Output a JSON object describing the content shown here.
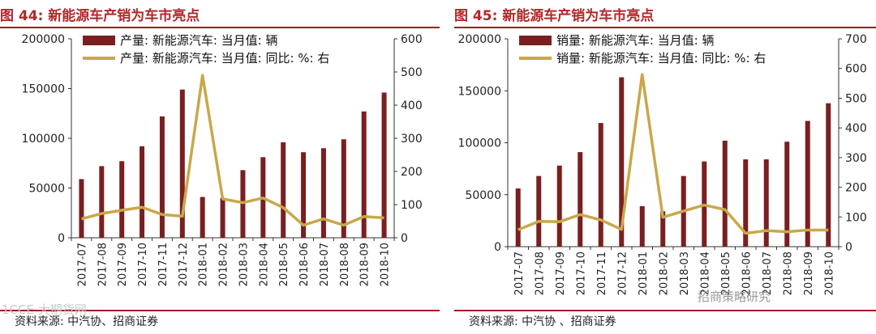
{
  "figures": [
    {
      "title": "图 44:  新能源车产销为车市亮点",
      "source": "资料来源:  中汽协、招商证券",
      "chart_data": {
        "type": "bar",
        "categories": [
          "2017-07",
          "2017-08",
          "2017-09",
          "2017-10",
          "2017-11",
          "2017-12",
          "2018-01",
          "2018-02",
          "2018-03",
          "2018-04",
          "2018-05",
          "2018-06",
          "2018-07",
          "2018-08",
          "2018-09",
          "2018-10"
        ],
        "series": [
          {
            "name": "产量: 新能源汽车: 当月值: 辆",
            "kind": "bar",
            "axis": "left",
            "color": "#7a1f1f",
            "values": [
              59000,
              72000,
              77000,
              92000,
              122000,
              149000,
              41000,
              40000,
              68000,
              81000,
              96000,
              86000,
              90000,
              99000,
              127000,
              146000
            ]
          },
          {
            "name": "产量: 新能源汽车: 当月值: 同比: %: 右",
            "kind": "line",
            "axis": "right",
            "color": "#c9a74a",
            "values": [
              57,
              73,
              83,
              92,
              70,
              65,
              490,
              117,
              106,
              120,
              91,
              38,
              57,
              38,
              64,
              60
            ]
          }
        ],
        "y_left": {
          "min": 0,
          "max": 200000,
          "ticks": [
            0,
            50000,
            100000,
            150000,
            200000
          ]
        },
        "y_right": {
          "min": 0,
          "max": 600,
          "ticks": [
            0,
            100,
            200,
            300,
            400,
            500,
            600
          ]
        },
        "grid": false,
        "legend": "top-left"
      }
    },
    {
      "title": "图 45:  新能源车产销为车市亮点",
      "source": "资料来源:  中汽协 、招商证券",
      "chart_data": {
        "type": "bar",
        "categories": [
          "2017-07",
          "2017-08",
          "2017-09",
          "2017-10",
          "2017-11",
          "2017-12",
          "2018-01",
          "2018-02",
          "2018-03",
          "2018-04",
          "2018-05",
          "2018-06",
          "2018-07",
          "2018-08",
          "2018-09",
          "2018-10"
        ],
        "series": [
          {
            "name": "销量: 新能源汽车: 当月值: 辆",
            "kind": "bar",
            "axis": "left",
            "color": "#7a1f1f",
            "values": [
              56000,
              68000,
              78000,
              91000,
              119000,
              163000,
              39000,
              34000,
              68000,
              82000,
              102000,
              84000,
              84000,
              101000,
              121000,
              138000
            ]
          },
          {
            "name": "销量: 新能源汽车: 当月值: 同比: %: 右",
            "kind": "line",
            "axis": "right",
            "color": "#c9a74a",
            "values": [
              57,
              85,
              84,
              108,
              90,
              58,
              580,
              99,
              120,
              140,
              125,
              45,
              54,
              50,
              56,
              56
            ]
          }
        ],
        "y_left": {
          "min": 0,
          "max": 200000,
          "ticks": [
            0,
            50000,
            100000,
            150000,
            200000
          ]
        },
        "y_right": {
          "min": 0,
          "max": 700,
          "ticks": [
            0,
            100,
            200,
            300,
            400,
            500,
            600,
            700
          ]
        },
        "grid": false,
        "legend": "top-left"
      }
    }
  ],
  "watermarks": [
    "1CCE 大期货网",
    "招商策略研究"
  ]
}
